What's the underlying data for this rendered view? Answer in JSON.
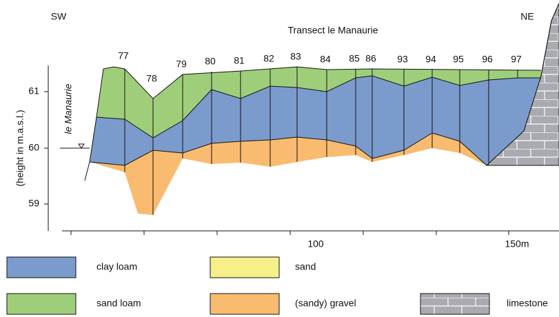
{
  "title": "Transect le Manaurie",
  "direction_left": "SW",
  "direction_right": "NE",
  "y_axis_label": "(height in m.a.s.l.)",
  "y_ticks": [
    "61",
    "60",
    "59"
  ],
  "x_ticks": [
    "100",
    "150m"
  ],
  "site_label": "le Manaurie",
  "boreholes": [
    "77",
    "78",
    "79",
    "80",
    "81",
    "82",
    "83",
    "84",
    "85",
    "86",
    "93",
    "94",
    "95",
    "96",
    "97"
  ],
  "legend": [
    "clay loam",
    "sand",
    "sand loam",
    "(sandy) gravel",
    "limestone"
  ]
}
